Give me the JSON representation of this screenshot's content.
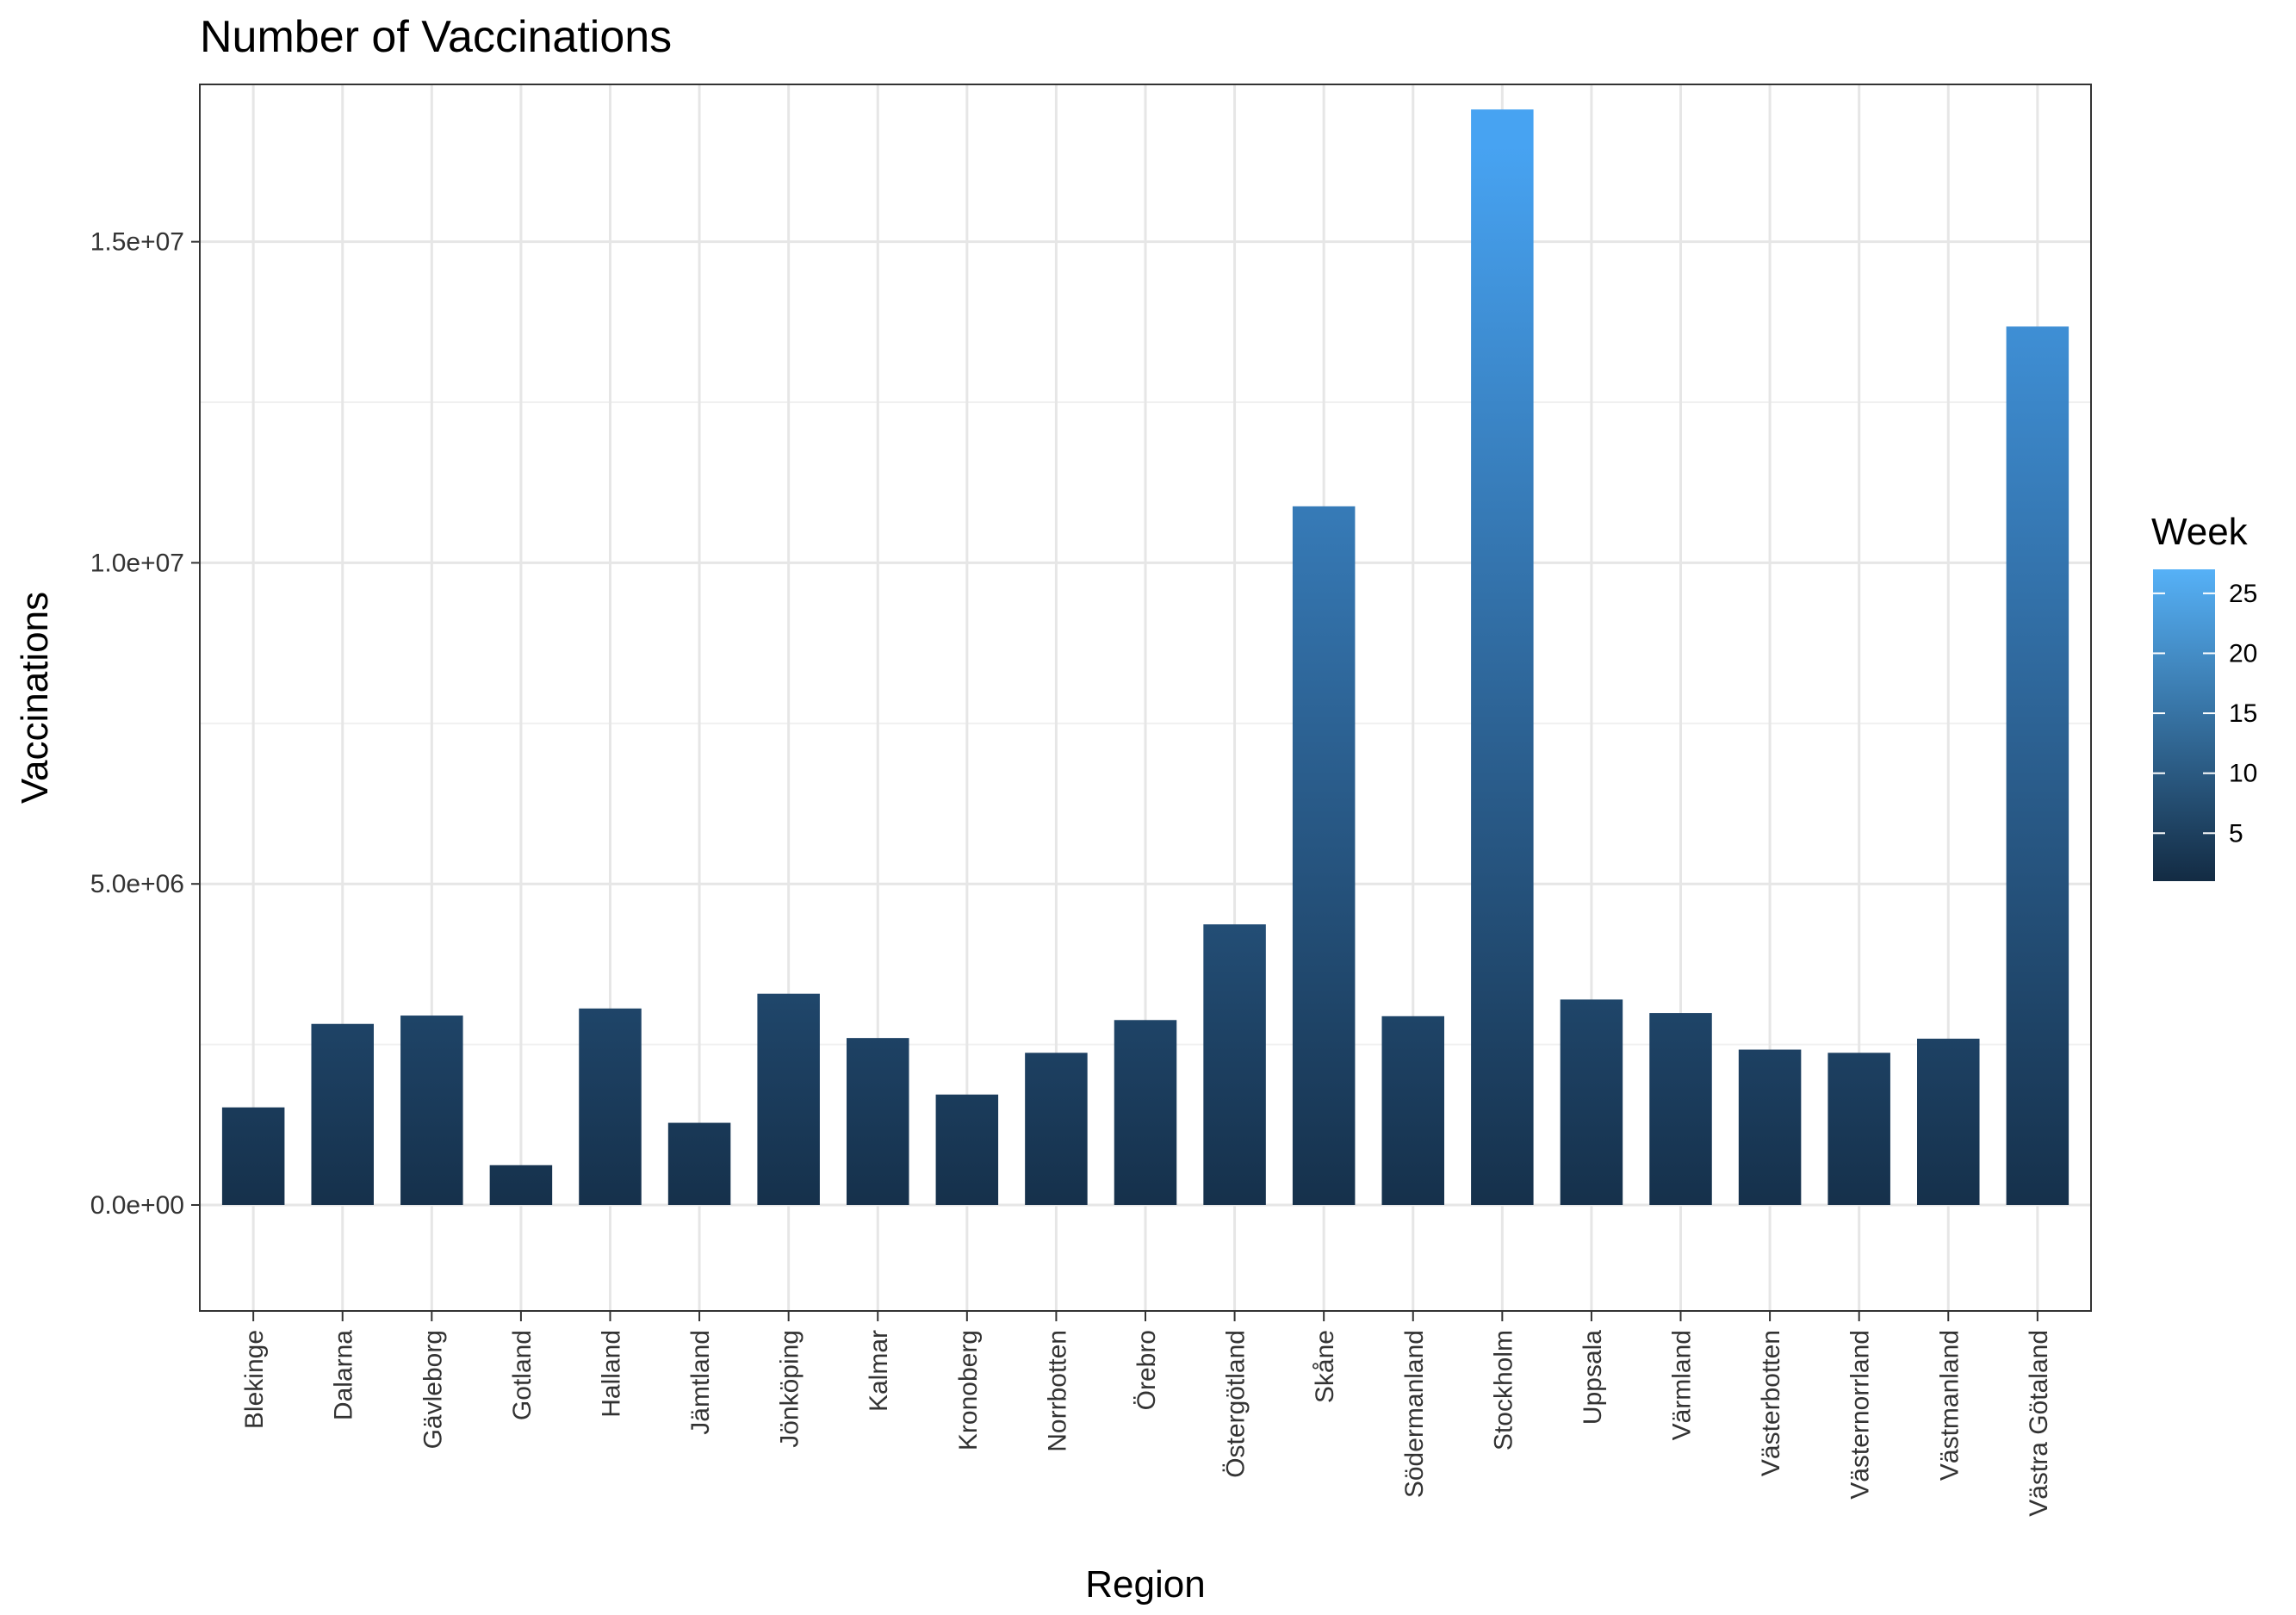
{
  "chart_data": {
    "type": "bar",
    "title": "Number of Vaccinations",
    "xlabel": "Region",
    "ylabel": "Vaccinations",
    "ylim": [
      -1650000,
      17450000
    ],
    "yticks": [
      0,
      5000000,
      10000000,
      15000000
    ],
    "ytick_labels": [
      "0.0e+00",
      "5.0e+06",
      "1.0e+07",
      "1.5e+07"
    ],
    "grid": true,
    "stacked_by": "Week",
    "categories": [
      "Blekinge",
      "Dalarna",
      "Gävleborg",
      "Gotland",
      "Halland",
      "Jämtland",
      "Jönköping",
      "Kalmar",
      "Kronoberg",
      "Norrbotten",
      "Örebro",
      "Östergötland",
      "Skåne",
      "Södermanland",
      "Stockholm",
      "Uppsala",
      "Värmland",
      "Västerbotten",
      "Västernorrland",
      "Västmanland",
      "Västra Götaland"
    ],
    "values": [
      1520000,
      2820000,
      2950000,
      620000,
      3060000,
      1280000,
      3290000,
      2600000,
      1720000,
      2370000,
      2880000,
      4370000,
      10880000,
      2940000,
      17060000,
      3200000,
      2990000,
      2420000,
      2370000,
      2590000,
      13680000
    ],
    "legend": {
      "title": "Week",
      "position": "right",
      "type": "continuous",
      "range": [
        1,
        27
      ],
      "breaks": [
        5,
        10,
        15,
        20,
        25
      ],
      "break_labels": [
        "5",
        "10",
        "15",
        "20",
        "25"
      ],
      "color_low": "#132B43",
      "color_high": "#56B1F7"
    }
  }
}
